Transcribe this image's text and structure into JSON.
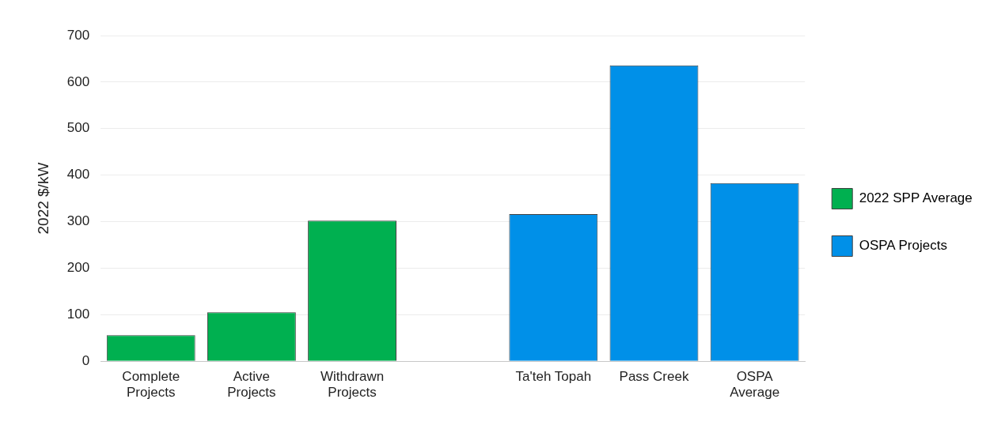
{
  "chart_data": {
    "type": "bar",
    "ylabel": "2022 $/kW",
    "categories": [
      "Complete Projects",
      "Active Projects",
      "Withdrawn Projects",
      null,
      "Ta'teh Topah",
      "Pass Creek",
      "OSPA Average"
    ],
    "series": [
      {
        "name": "2022 SPP Average",
        "color": "#00b050",
        "values": [
          56,
          105,
          302,
          null,
          null,
          null,
          null
        ]
      },
      {
        "name": "OSPA Projects",
        "color": "#0090e8",
        "values": [
          null,
          null,
          null,
          null,
          316,
          636,
          383
        ]
      }
    ],
    "ylim": [
      0,
      700
    ],
    "yticks": [
      0,
      100,
      200,
      300,
      400,
      500,
      600,
      700
    ],
    "grid": "y",
    "legend": "right"
  }
}
